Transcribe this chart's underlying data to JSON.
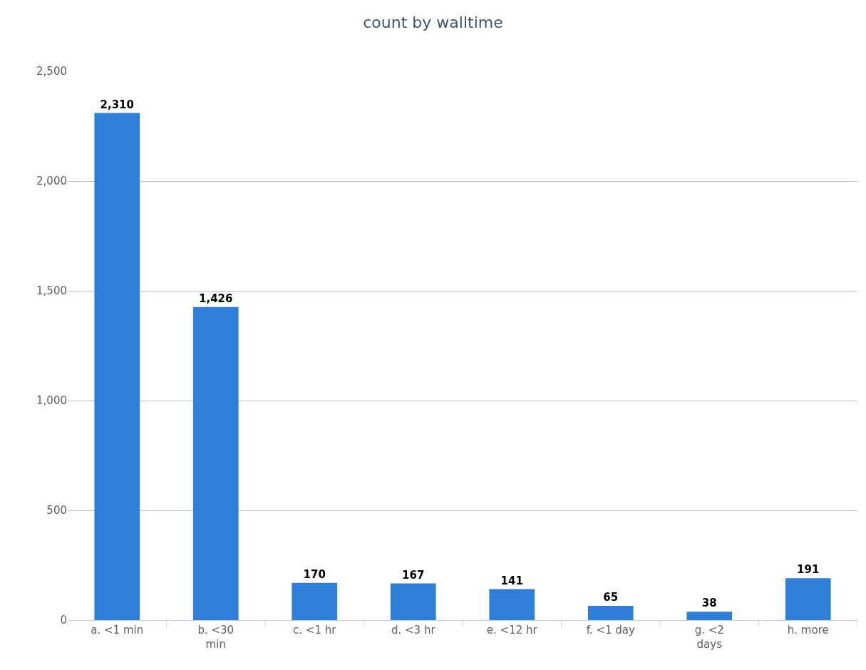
{
  "chart_data": {
    "type": "bar",
    "title": "count by walltime",
    "categories": [
      "a. <1 min",
      "b. <30 min",
      "c. <1 hr",
      "d. <3 hr",
      "e. <12 hr",
      "f. <1 day",
      "g. <2 days",
      "h. more"
    ],
    "values": [
      2310,
      1426,
      170,
      167,
      141,
      65,
      38,
      191
    ],
    "value_labels": [
      "2,310",
      "1,426",
      "170",
      "167",
      "141",
      "65",
      "38",
      "191"
    ],
    "color": "#2f7ed8",
    "ylim": [
      0,
      2500
    ],
    "yticks": [
      0,
      500,
      {
        "value": 1000,
        "label": "1,000"
      },
      {
        "value": 1500,
        "label": "1,500"
      },
      {
        "value": 2000,
        "label": "2,000"
      },
      {
        "value": 2500,
        "label": "2,500"
      }
    ],
    "grid": "y"
  }
}
